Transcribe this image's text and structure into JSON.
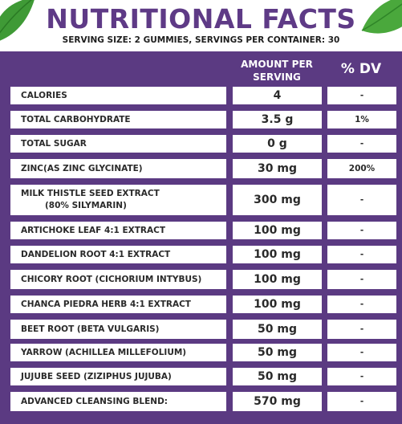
{
  "header": {
    "title": "NUTRITIONAL FACTS",
    "serving_info": "SERVING SIZE: 2 GUMMIES, SERVINGS PER CONTAINER: 30"
  },
  "table": {
    "columns": {
      "amount_line1": "AMOUNT PER",
      "amount_line2": "SERVING",
      "dv": "% DV"
    },
    "rows": [
      {
        "name": "CALORIES",
        "amount": "4",
        "dv": "-"
      },
      {
        "name": "TOTAL CARBOHYDRATE",
        "amount": "3.5 g",
        "dv": "1%"
      },
      {
        "name": "TOTAL SUGAR",
        "amount": "0 g",
        "dv": "-"
      },
      {
        "name": "ZINC(AS ZINC GLYCINATE)",
        "amount": "30 mg",
        "dv": "200%"
      },
      {
        "name": "MILK THISTLE SEED EXTRACT",
        "name_line2": "(80% SILYMARIN)",
        "amount": "300 mg",
        "dv": "-"
      },
      {
        "name": "ARTICHOKE LEAF 4:1 EXTRACT",
        "amount": "100 mg",
        "dv": "-"
      },
      {
        "name": "DANDELION ROOT 4:1 EXTRACT",
        "amount": "100 mg",
        "dv": "-"
      },
      {
        "name": "CHICORY ROOT (CICHORIUM INTYBUS)",
        "amount": "100 mg",
        "dv": "-"
      },
      {
        "name": "CHANCA PIEDRA HERB 4:1 EXTRACT",
        "amount": "100 mg",
        "dv": "-"
      },
      {
        "name": "BEET ROOT (BETA VULGARIS)",
        "amount": "50 mg",
        "dv": "-"
      },
      {
        "name": "YARROW (ACHILLEA MILLEFOLIUM)",
        "amount": "50 mg",
        "dv": "-"
      },
      {
        "name": "JUJUBE SEED (ZIZIPHUS JUJUBA)",
        "amount": "50 mg",
        "dv": "-"
      },
      {
        "name": "ADVANCED CLEANSING BLEND:",
        "amount": "570 mg",
        "dv": "-"
      }
    ]
  },
  "colors": {
    "brand_purple": "#5b3a82",
    "title_purple": "#5e3a86",
    "leaf_green": "#3f9a36"
  },
  "icons": [
    "leaf-icon"
  ]
}
